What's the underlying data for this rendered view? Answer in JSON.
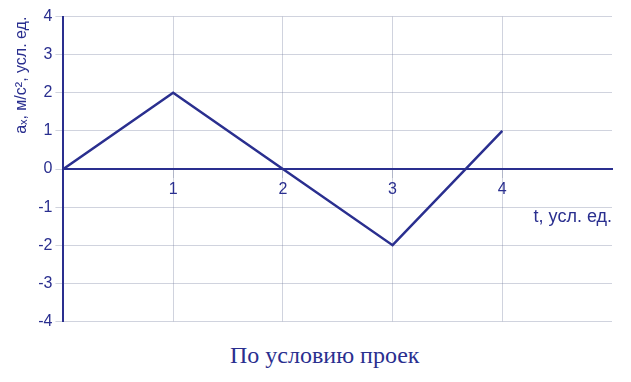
{
  "chart_data": {
    "type": "line",
    "y_label": "aₓ, м/с², усл. ед.",
    "x_label": "t, усл. ед.",
    "annotation": "По условию проек",
    "x": [
      0,
      1,
      2,
      3,
      4
    ],
    "values": [
      0,
      2,
      0,
      -2,
      1
    ],
    "color": "#2a2f8f",
    "xlim": [
      0,
      5
    ],
    "xticks": [
      1,
      2,
      3,
      4
    ],
    "ylim": [
      -4,
      4
    ],
    "yticks": [
      -4,
      -3,
      -2,
      -1,
      0,
      1,
      2,
      3,
      4
    ],
    "grid": true
  }
}
